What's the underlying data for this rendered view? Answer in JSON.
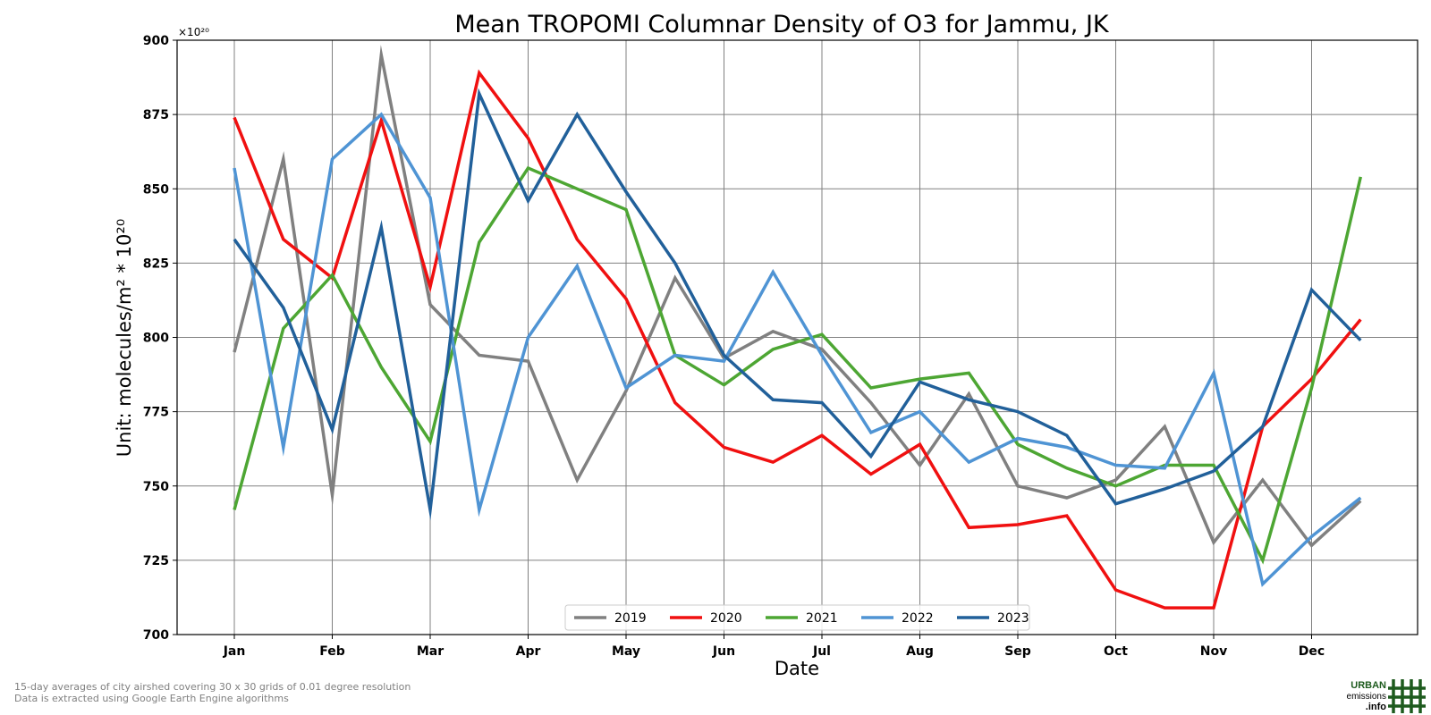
{
  "chart_data": {
    "type": "line",
    "title": "Mean TROPOMI Columnar Density of O3 for Jammu, JK",
    "xlabel": "Date",
    "ylabel": "Unit: molecules/m² * 10²⁰",
    "y_multiplier": "×10²⁰",
    "ylim": [
      700,
      900
    ],
    "yticks": [
      700,
      725,
      750,
      775,
      800,
      825,
      850,
      875,
      900
    ],
    "month_labels": [
      "Jan",
      "Feb",
      "Mar",
      "Apr",
      "May",
      "Jun",
      "Jul",
      "Aug",
      "Sep",
      "Oct",
      "Nov",
      "Dec"
    ],
    "x": [
      "Jan 01",
      "Jan 16",
      "Feb 01",
      "Feb 16",
      "Mar 01",
      "Mar 16",
      "Apr 01",
      "Apr 16",
      "May 01",
      "May 16",
      "Jun 01",
      "Jun 16",
      "Jul 01",
      "Jul 16",
      "Aug 01",
      "Aug 16",
      "Sep 01",
      "Sep 16",
      "Oct 01",
      "Oct 16",
      "Nov 01",
      "Nov 16",
      "Dec 01",
      "Dec 16"
    ],
    "grid": true,
    "legend_position": "bottom-center",
    "series": [
      {
        "name": "2019",
        "color": "#808080",
        "values": [
          795,
          860,
          747,
          895,
          811,
          794,
          792,
          752,
          782,
          820,
          793,
          802,
          796,
          778,
          757,
          781,
          750,
          746,
          752,
          770,
          731,
          752,
          730,
          745
        ]
      },
      {
        "name": "2020",
        "color": "#f01010",
        "values": [
          874,
          833,
          820,
          873,
          817,
          889,
          867,
          833,
          813,
          778,
          763,
          758,
          767,
          754,
          764,
          736,
          737,
          740,
          715,
          709,
          709,
          770,
          786,
          806
        ]
      },
      {
        "name": "2021",
        "color": "#4da633",
        "values": [
          742,
          803,
          821,
          790,
          765,
          832,
          857,
          850,
          843,
          794,
          784,
          796,
          801,
          783,
          786,
          788,
          764,
          756,
          750,
          757,
          757,
          725,
          783,
          854
        ]
      },
      {
        "name": "2022",
        "color": "#4f94d4",
        "values": [
          857,
          763,
          860,
          875,
          847,
          742,
          800,
          824,
          783,
          794,
          792,
          822,
          794,
          768,
          775,
          758,
          766,
          763,
          757,
          756,
          788,
          717,
          733,
          746
        ]
      },
      {
        "name": "2023",
        "color": "#21609a",
        "values": [
          833,
          810,
          769,
          837,
          742,
          882,
          846,
          875,
          849,
          825,
          794,
          779,
          778,
          760,
          785,
          779,
          775,
          767,
          744,
          749,
          755,
          770,
          816,
          799
        ]
      }
    ]
  },
  "footnotes": {
    "line1": "15-day averages of city airshed covering 30 x 30 grids of 0.01 degree resolution",
    "line2": "Data is extracted using Google Earth Engine algorithms"
  },
  "logo": {
    "line1": "URBAN",
    "line2": "emissions",
    "line3": ".info",
    "color": "#1e5b1e"
  }
}
